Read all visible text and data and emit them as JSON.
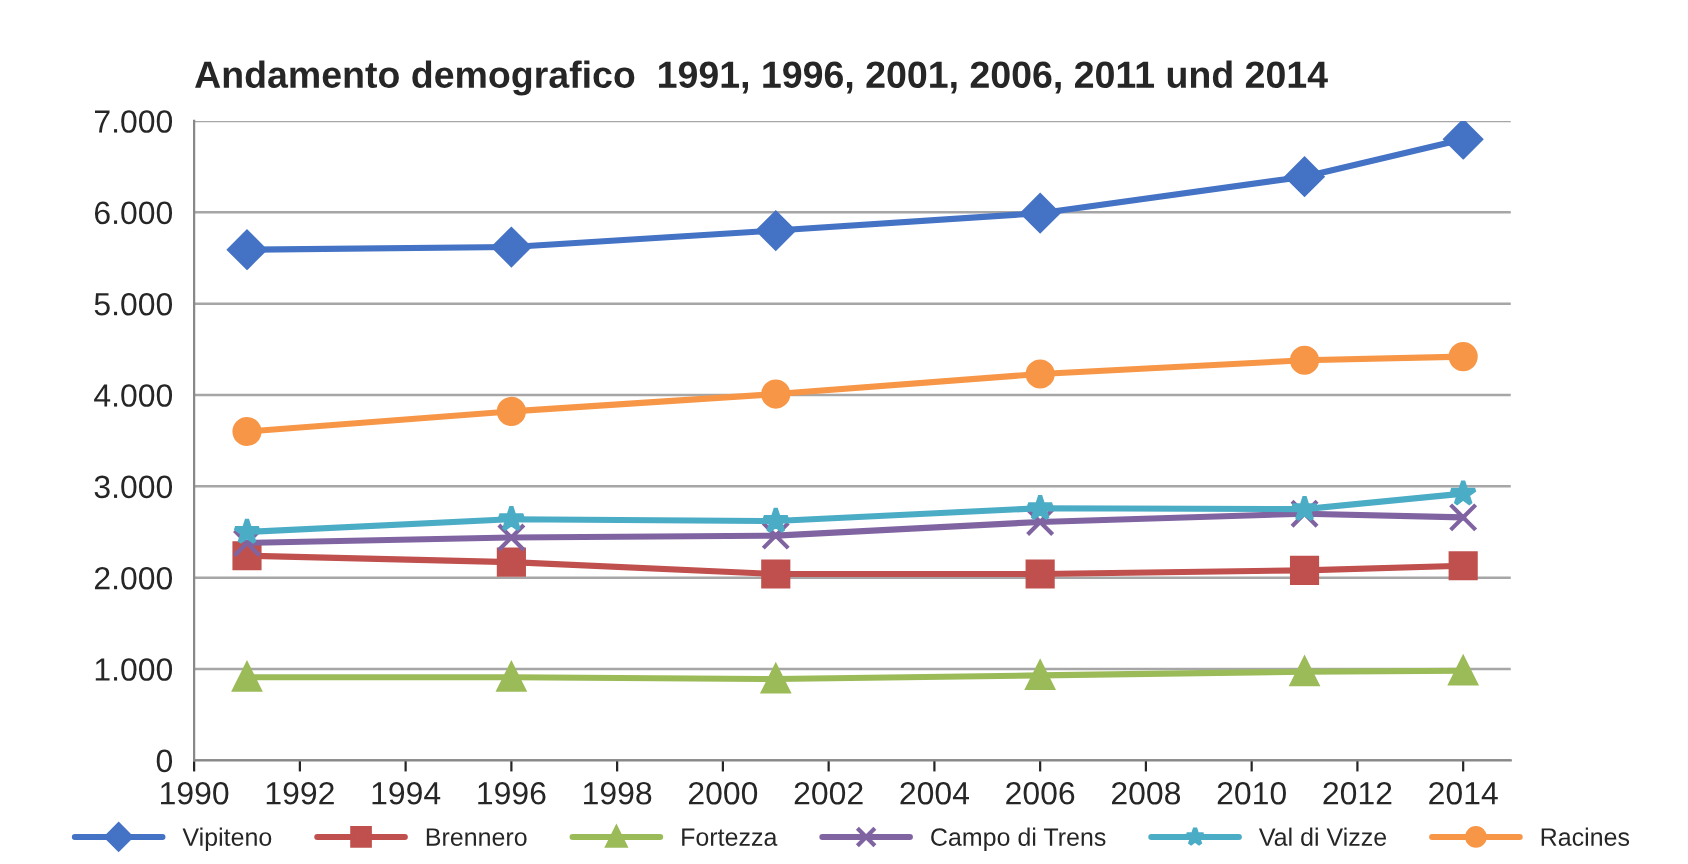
{
  "chart_data": {
    "type": "line",
    "title": "Andamento demografico  1991, 1996, 2001, 2006, 2011 und 2014",
    "x": [
      1991,
      1996,
      2001,
      2006,
      2011,
      2014
    ],
    "series": [
      {
        "name": "Vipiteno",
        "color": "#4472c4",
        "marker": "diamond",
        "values": [
          5590,
          5620,
          5800,
          5990,
          6390,
          6800
        ]
      },
      {
        "name": "Brennero",
        "color": "#c0504d",
        "marker": "square",
        "values": [
          2240,
          2170,
          2040,
          2040,
          2080,
          2130
        ]
      },
      {
        "name": "Fortezza",
        "color": "#9bbb59",
        "marker": "triangle",
        "values": [
          910,
          910,
          890,
          930,
          970,
          980
        ]
      },
      {
        "name": "Campo di Trens",
        "color": "#8064a2",
        "marker": "cross",
        "values": [
          2380,
          2440,
          2460,
          2610,
          2700,
          2660
        ]
      },
      {
        "name": "Val di Vizze",
        "color": "#4bacc6",
        "marker": "star",
        "values": [
          2500,
          2640,
          2620,
          2760,
          2750,
          2920
        ]
      },
      {
        "name": "Racines",
        "color": "#f79646",
        "marker": "circle",
        "values": [
          3600,
          3820,
          4010,
          4230,
          4380,
          4420
        ]
      }
    ],
    "xlim": [
      1990,
      2014.9
    ],
    "xticks": [
      1990,
      1992,
      1994,
      1996,
      1998,
      2000,
      2002,
      2004,
      2006,
      2008,
      2010,
      2012,
      2014
    ],
    "ylim": [
      0,
      7000
    ],
    "yticks": [
      0,
      {
        "value": 1000,
        "label": "1.000"
      },
      {
        "value": 2000,
        "label": "2.000"
      },
      {
        "value": 3000,
        "label": "3.000"
      },
      {
        "value": 4000,
        "label": "4.000"
      },
      {
        "value": 5000,
        "label": "5.000"
      },
      {
        "value": 6000,
        "label": "6.000"
      },
      {
        "value": 7000,
        "label": "7.000"
      }
    ],
    "grid": "y",
    "legend": "bottom",
    "line_style": "solid"
  }
}
